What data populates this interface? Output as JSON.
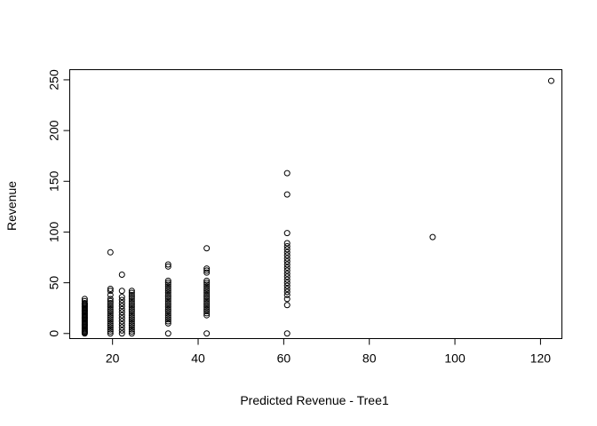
{
  "chart_data": {
    "type": "scatter",
    "title": "",
    "xlabel": "Predicted Revenue - Tree1",
    "ylabel": "Revenue",
    "xlim": [
      10,
      125
    ],
    "ylim": [
      -5,
      260
    ],
    "xticks": [
      20,
      40,
      60,
      80,
      100,
      120
    ],
    "yticks": [
      0,
      50,
      100,
      150,
      200,
      250
    ],
    "xtick_labels": [
      "20",
      "40",
      "60",
      "80",
      "100",
      "120"
    ],
    "ytick_labels": [
      "0",
      "50",
      "100",
      "150",
      "200",
      "250"
    ],
    "grid": false,
    "legend": "none",
    "marker": "open-circle",
    "points": [
      [
        13.5,
        0
      ],
      [
        13.5,
        1
      ],
      [
        13.5,
        2
      ],
      [
        13.5,
        3
      ],
      [
        13.5,
        4
      ],
      [
        13.5,
        5
      ],
      [
        13.5,
        6
      ],
      [
        13.5,
        7
      ],
      [
        13.5,
        8
      ],
      [
        13.5,
        9
      ],
      [
        13.5,
        10
      ],
      [
        13.5,
        11
      ],
      [
        13.5,
        12
      ],
      [
        13.5,
        13
      ],
      [
        13.5,
        14
      ],
      [
        13.5,
        15
      ],
      [
        13.5,
        16
      ],
      [
        13.5,
        17
      ],
      [
        13.5,
        18
      ],
      [
        13.5,
        19
      ],
      [
        13.5,
        20
      ],
      [
        13.5,
        21
      ],
      [
        13.5,
        22
      ],
      [
        13.5,
        23
      ],
      [
        13.5,
        24
      ],
      [
        13.5,
        25
      ],
      [
        13.5,
        26
      ],
      [
        13.5,
        27
      ],
      [
        13.5,
        28
      ],
      [
        13.5,
        29
      ],
      [
        13.5,
        30
      ],
      [
        13.5,
        32
      ],
      [
        13.5,
        34
      ],
      [
        19.5,
        0
      ],
      [
        19.5,
        2
      ],
      [
        19.5,
        4
      ],
      [
        19.5,
        6
      ],
      [
        19.5,
        8
      ],
      [
        19.5,
        10
      ],
      [
        19.5,
        12
      ],
      [
        19.5,
        14
      ],
      [
        19.5,
        16
      ],
      [
        19.5,
        18
      ],
      [
        19.5,
        20
      ],
      [
        19.5,
        22
      ],
      [
        19.5,
        24
      ],
      [
        19.5,
        26
      ],
      [
        19.5,
        28
      ],
      [
        19.5,
        30
      ],
      [
        19.5,
        32
      ],
      [
        19.5,
        34
      ],
      [
        19.5,
        38
      ],
      [
        19.5,
        42
      ],
      [
        19.5,
        44
      ],
      [
        19.5,
        80
      ],
      [
        22.2,
        0
      ],
      [
        22.2,
        3
      ],
      [
        22.2,
        6
      ],
      [
        22.2,
        9
      ],
      [
        22.2,
        12
      ],
      [
        22.2,
        15
      ],
      [
        22.2,
        18
      ],
      [
        22.2,
        21
      ],
      [
        22.2,
        24
      ],
      [
        22.2,
        27
      ],
      [
        22.2,
        30
      ],
      [
        22.2,
        33
      ],
      [
        22.2,
        36
      ],
      [
        22.2,
        42
      ],
      [
        22.2,
        58
      ],
      [
        24.5,
        0
      ],
      [
        24.5,
        2
      ],
      [
        24.5,
        4
      ],
      [
        24.5,
        6
      ],
      [
        24.5,
        8
      ],
      [
        24.5,
        10
      ],
      [
        24.5,
        12
      ],
      [
        24.5,
        14
      ],
      [
        24.5,
        16
      ],
      [
        24.5,
        18
      ],
      [
        24.5,
        20
      ],
      [
        24.5,
        22
      ],
      [
        24.5,
        24
      ],
      [
        24.5,
        26
      ],
      [
        24.5,
        28
      ],
      [
        24.5,
        30
      ],
      [
        24.5,
        32
      ],
      [
        24.5,
        34
      ],
      [
        24.5,
        36
      ],
      [
        24.5,
        38
      ],
      [
        24.5,
        40
      ],
      [
        24.5,
        42
      ],
      [
        33,
        0
      ],
      [
        33,
        10
      ],
      [
        33,
        12
      ],
      [
        33,
        14
      ],
      [
        33,
        16
      ],
      [
        33,
        18
      ],
      [
        33,
        20
      ],
      [
        33,
        22
      ],
      [
        33,
        24
      ],
      [
        33,
        26
      ],
      [
        33,
        28
      ],
      [
        33,
        30
      ],
      [
        33,
        32
      ],
      [
        33,
        34
      ],
      [
        33,
        36
      ],
      [
        33,
        38
      ],
      [
        33,
        40
      ],
      [
        33,
        42
      ],
      [
        33,
        44
      ],
      [
        33,
        46
      ],
      [
        33,
        48
      ],
      [
        33,
        50
      ],
      [
        33,
        52
      ],
      [
        33,
        66
      ],
      [
        33,
        68
      ],
      [
        42,
        0
      ],
      [
        42,
        18
      ],
      [
        42,
        20
      ],
      [
        42,
        22
      ],
      [
        42,
        24
      ],
      [
        42,
        26
      ],
      [
        42,
        28
      ],
      [
        42,
        30
      ],
      [
        42,
        32
      ],
      [
        42,
        34
      ],
      [
        42,
        36
      ],
      [
        42,
        38
      ],
      [
        42,
        40
      ],
      [
        42,
        42
      ],
      [
        42,
        44
      ],
      [
        42,
        46
      ],
      [
        42,
        48
      ],
      [
        42,
        50
      ],
      [
        42,
        52
      ],
      [
        42,
        60
      ],
      [
        42,
        62
      ],
      [
        42,
        64
      ],
      [
        42,
        84
      ],
      [
        60.8,
        0
      ],
      [
        60.8,
        28
      ],
      [
        60.8,
        34
      ],
      [
        60.8,
        38
      ],
      [
        60.8,
        41
      ],
      [
        60.8,
        44
      ],
      [
        60.8,
        47
      ],
      [
        60.8,
        50
      ],
      [
        60.8,
        53
      ],
      [
        60.8,
        56
      ],
      [
        60.8,
        59
      ],
      [
        60.8,
        62
      ],
      [
        60.8,
        65
      ],
      [
        60.8,
        68
      ],
      [
        60.8,
        71
      ],
      [
        60.8,
        74
      ],
      [
        60.8,
        77
      ],
      [
        60.8,
        80
      ],
      [
        60.8,
        83
      ],
      [
        60.8,
        86
      ],
      [
        60.8,
        89
      ],
      [
        60.8,
        99
      ],
      [
        60.8,
        137
      ],
      [
        60.8,
        158
      ],
      [
        94.8,
        95
      ],
      [
        122.5,
        249
      ]
    ]
  }
}
